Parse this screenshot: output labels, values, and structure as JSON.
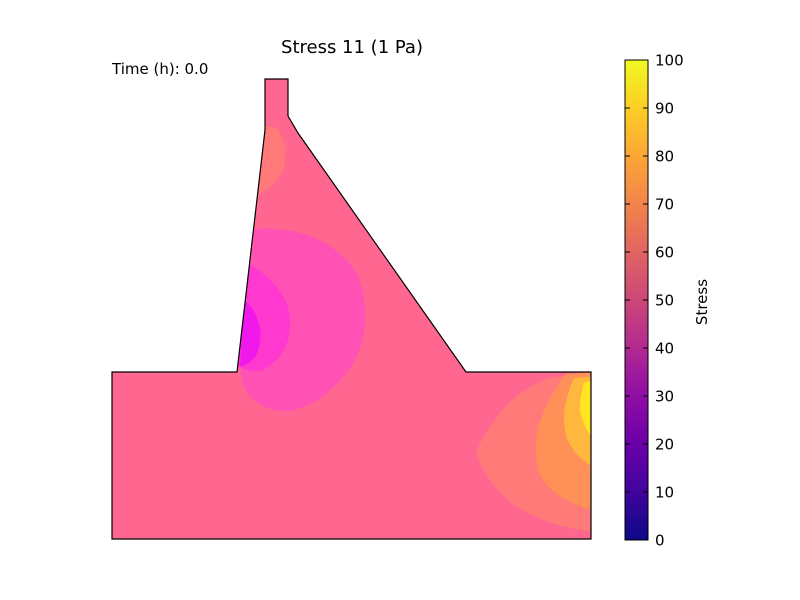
{
  "chart_data": {
    "type": "heatmap",
    "title": "Stress 11 (1 Pa)",
    "annotation": "Time (h): 0.0",
    "colorbar": {
      "label": "Stress",
      "colormap": "plasma",
      "range": [
        0,
        100
      ],
      "ticks": [
        0,
        10,
        20,
        30,
        40,
        50,
        60,
        70,
        80,
        90,
        100
      ]
    },
    "regions": [
      {
        "name": "background",
        "value": 55
      },
      {
        "name": "upper-left-hotspot",
        "value": 65
      },
      {
        "name": "mid-left-lobe-outer",
        "value": 50
      },
      {
        "name": "mid-left-lobe-inner",
        "value": 45
      },
      {
        "name": "mid-left-lobe-core",
        "value": 40
      },
      {
        "name": "lower-right-zone-1",
        "value": 65
      },
      {
        "name": "lower-right-zone-2",
        "value": 70
      },
      {
        "name": "lower-right-zone-3",
        "value": 80
      },
      {
        "name": "lower-right-zone-4",
        "value": 90
      }
    ]
  }
}
